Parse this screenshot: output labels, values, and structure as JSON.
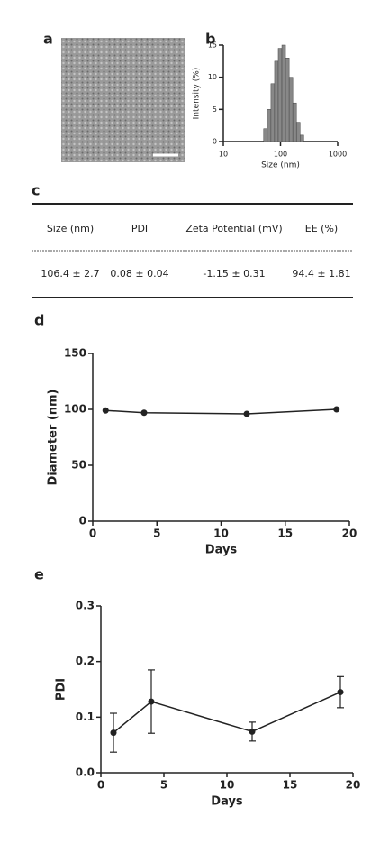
{
  "panels": {
    "a": {
      "label": "a"
    },
    "c": {
      "label": "c",
      "table": {
        "headers": [
          "Size (nm)",
          "PDI",
          "Zeta Potential (mV)",
          "EE (%)"
        ],
        "rows": [
          [
            "106.4 ± 2.7",
            "0.08 ± 0.04",
            "-1.15 ± 0.31",
            "94.4 ± 1.81"
          ]
        ]
      }
    }
  },
  "chart_data": [
    {
      "type": "histogram",
      "panel_label": "b",
      "xlabel": "Size (nm)",
      "ylabel": "Intensity (%)",
      "xscale": "log",
      "bins": [
        50.7,
        58.8,
        68.1,
        78.8,
        91.3,
        105.7,
        122.4,
        141.8,
        164.2,
        190.1,
        220.2,
        255.0
      ],
      "values": [
        2,
        5,
        9,
        12.5,
        14.5,
        15,
        13,
        10,
        6,
        3,
        1
      ],
      "color": "#888888",
      "xlim": [
        10,
        1000
      ],
      "xticks": [
        10,
        100,
        1000
      ],
      "ylim": [
        0,
        15
      ],
      "yticks": [
        0,
        5,
        10,
        15
      ]
    },
    {
      "type": "line",
      "panel_label": "d",
      "xlabel": "Days",
      "ylabel": "Diameter (nm)",
      "color": "#222222",
      "x": [
        1,
        4,
        12,
        19
      ],
      "values": [
        99,
        97,
        96,
        100
      ],
      "xlim": [
        0,
        20
      ],
      "xticks": [
        0,
        5,
        10,
        15,
        20
      ],
      "ylim": [
        0,
        150
      ],
      "yticks": [
        0,
        50,
        100,
        150
      ]
    },
    {
      "type": "line",
      "panel_label": "e",
      "xlabel": "Days",
      "ylabel": "PDI",
      "color": "#222222",
      "x": [
        1,
        4,
        12,
        19
      ],
      "values": [
        0.072,
        0.128,
        0.074,
        0.145
      ],
      "errors": [
        0.035,
        0.057,
        0.017,
        0.028
      ],
      "xlim": [
        0,
        20
      ],
      "xticks": [
        0,
        5,
        10,
        15,
        20
      ],
      "ylim": [
        0,
        0.3
      ],
      "yticks": [
        {
          "value": 0,
          "label": "0.0"
        },
        0.1,
        0.2,
        0.3
      ]
    }
  ]
}
